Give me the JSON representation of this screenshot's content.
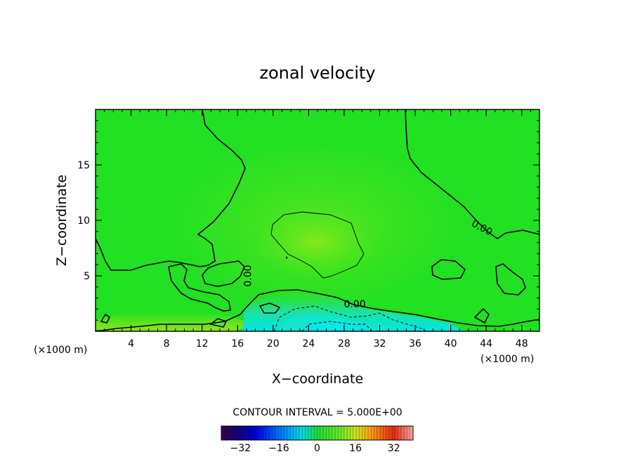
{
  "chart_data": {
    "type": "heatmap",
    "title": "zonal velocity",
    "xlabel": "X−coordinate",
    "ylabel": "Z−coordinate",
    "x_unit_left": "(×1000 m)",
    "x_unit_right": "(×1000 m)",
    "xlim": [
      0,
      50
    ],
    "ylim": [
      0,
      20
    ],
    "xticks": [
      4,
      8,
      12,
      16,
      20,
      24,
      28,
      32,
      36,
      40,
      44,
      48
    ],
    "yticks": [
      5,
      10,
      15
    ],
    "contour_interval_text": "CONTOUR INTERVAL = 5.000E+00",
    "contour_labels": [
      {
        "text": "0.00",
        "x": 17.2,
        "z": 5.0
      },
      {
        "text": "0.00",
        "x": 29.2,
        "z": 2.4
      },
      {
        "text": "0.00",
        "x": 43.5,
        "z": 9.3
      }
    ],
    "colorbar": {
      "min": -40,
      "max": 40,
      "ticks": [
        "−32",
        "−16",
        "0",
        "16",
        "32"
      ],
      "tick_values": [
        -32,
        -16,
        0,
        16,
        32
      ]
    },
    "colors": {
      "background_field": "#22e022",
      "core_max": "#7de81a",
      "near_surface_min": "#00e8e8"
    }
  }
}
